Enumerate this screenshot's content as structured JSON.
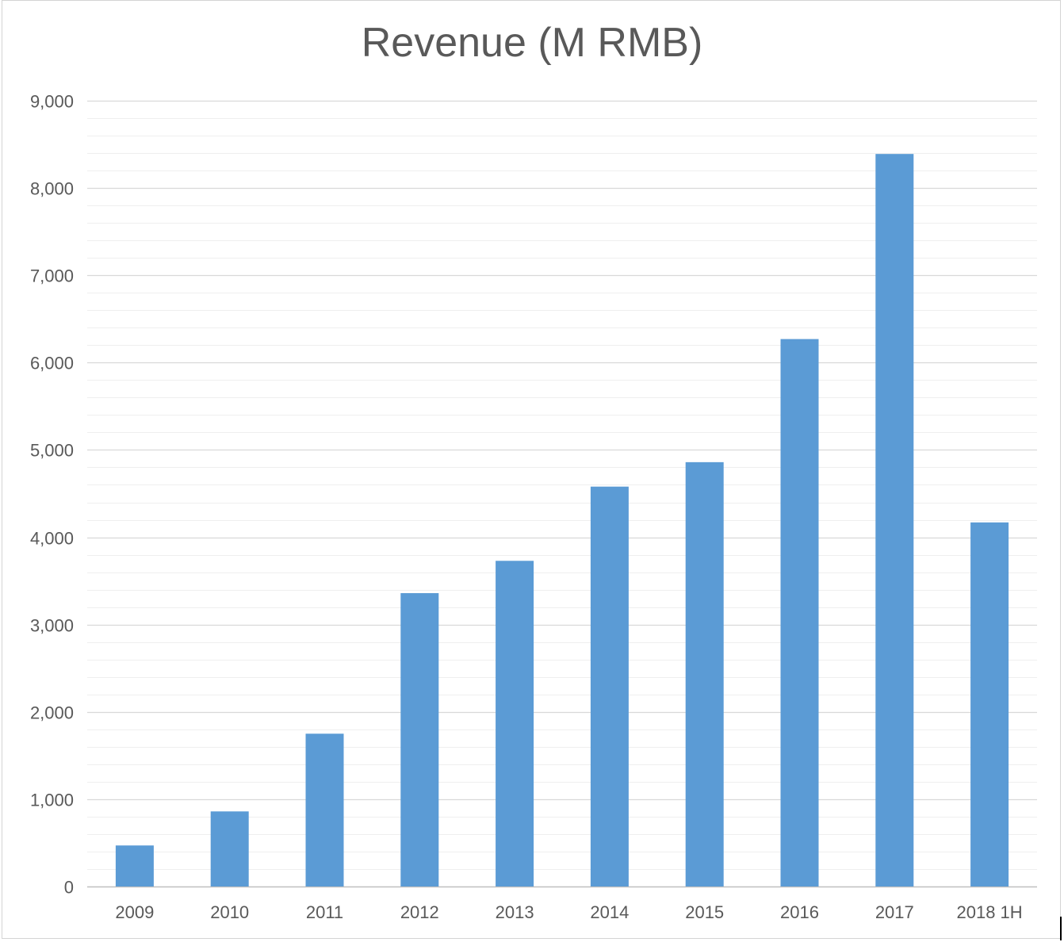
{
  "chart_data": {
    "type": "bar",
    "title": "Revenue (M RMB)",
    "xlabel": "",
    "ylabel": "",
    "categories": [
      "2009",
      "2010",
      "2011",
      "2012",
      "2013",
      "2014",
      "2015",
      "2016",
      "2017",
      "2018 1H"
    ],
    "series": [
      {
        "values": [
          470,
          860,
          1750,
          3360,
          3730,
          4580,
          4860,
          6270,
          8390,
          4170
        ]
      }
    ],
    "ylim": [
      0,
      9000
    ],
    "yticks": [
      0,
      1000,
      2000,
      3000,
      4000,
      5000,
      6000,
      7000,
      8000,
      9000
    ],
    "ytick_labels": [
      "0",
      "1,000",
      "2,000",
      "3,000",
      "4,000",
      "5,000",
      "6,000",
      "7,000",
      "8,000",
      "9,000"
    ],
    "minor_grid_step": 200,
    "grid": true,
    "legend": "none",
    "colors": {
      "bar": "#5b9bd5",
      "major_grid": "#d9d9d9",
      "minor_grid": "#efefef",
      "text": "#595959"
    }
  }
}
